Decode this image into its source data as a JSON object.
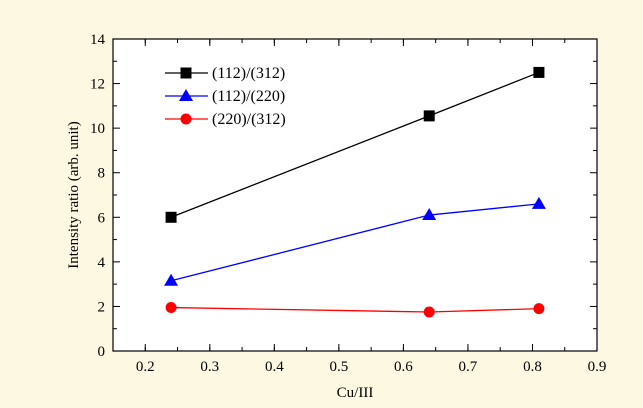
{
  "chart_data": {
    "type": "line",
    "xlabel": "Cu/III",
    "ylabel": "Intensity ratio (arb. unit)",
    "xlim": [
      0.15,
      0.9
    ],
    "ylim": [
      0,
      14
    ],
    "xticks": [
      0.2,
      0.3,
      0.4,
      0.5,
      0.6,
      0.7,
      0.8,
      0.9
    ],
    "yticks": [
      0,
      2,
      4,
      6,
      8,
      10,
      12,
      14
    ],
    "grid": false,
    "legend_position": "top-left",
    "background_color": "#fdf8e1",
    "series": [
      {
        "name": "(112)/(312)",
        "color": "#000000",
        "marker": "square",
        "x": [
          0.24,
          0.64,
          0.81
        ],
        "y": [
          6.0,
          10.55,
          12.5
        ]
      },
      {
        "name": "(112)/(220)",
        "color": "#0000ff",
        "marker": "triangle",
        "x": [
          0.24,
          0.64,
          0.81
        ],
        "y": [
          3.15,
          6.1,
          6.6
        ]
      },
      {
        "name": "(220)/(312)",
        "color": "#ff0000",
        "marker": "circle",
        "x": [
          0.24,
          0.64,
          0.81
        ],
        "y": [
          1.95,
          1.75,
          1.9
        ]
      }
    ]
  }
}
